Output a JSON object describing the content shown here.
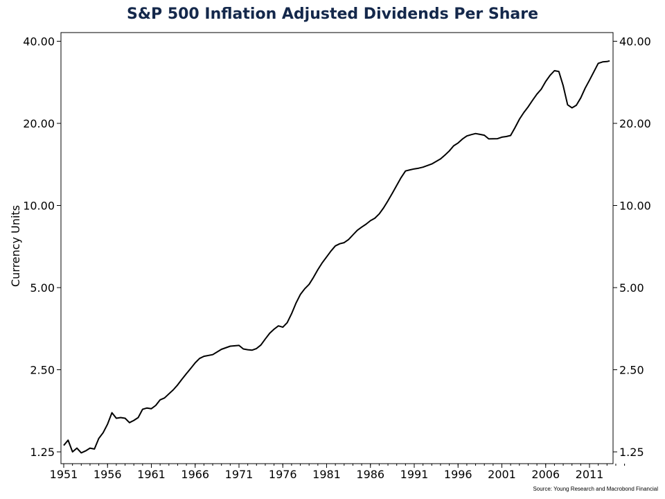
{
  "chart_data": {
    "type": "line",
    "title": "S&P 500 Inflation Adjusted Dividends Per Share",
    "ylabel": "Currency Units",
    "xlabel": "",
    "y_scale": "log",
    "ylim": [
      1.25,
      43
    ],
    "xlim": [
      1951,
      2016
    ],
    "x_ticks": [
      "1951",
      "1956",
      "1961",
      "1966",
      "1971",
      "1976",
      "1981",
      "1986",
      "1991",
      "1996",
      "2001",
      "2006",
      "2011"
    ],
    "y_ticks": [
      "1.25",
      "2.50",
      "5.00",
      "10.00",
      "20.00",
      "40.00"
    ],
    "grid": false,
    "legend": "none",
    "line_color": "#000000",
    "source": "Source: Young Research and Macrobond Financial",
    "series": [
      {
        "x": [
          1951.0,
          1951.5,
          1952.0,
          1952.5,
          1953.0,
          1953.5,
          1954.0,
          1954.5,
          1955.0,
          1955.5,
          1956.0,
          1956.5,
          1957.0,
          1957.5,
          1958.0,
          1958.5,
          1959.0,
          1959.5,
          1960.0,
          1960.5,
          1961.0,
          1961.5,
          1962.0,
          1962.5,
          1963.0,
          1963.5,
          1964.0,
          1964.5,
          1965.0,
          1965.5,
          1966.0,
          1966.5,
          1967.0,
          1968.0,
          1969.0,
          1970.0,
          1971.0,
          1971.5,
          1972.0,
          1972.5,
          1973.0,
          1973.5,
          1974.0,
          1974.5,
          1975.0,
          1975.5,
          1976.0,
          1976.5,
          1977.0,
          1977.5,
          1978.0,
          1978.5,
          1979.0,
          1979.5,
          1980.0,
          1980.5,
          1981.0,
          1981.5,
          1982.0,
          1982.5,
          1983.0,
          1983.5,
          1984.0,
          1984.5,
          1985.0,
          1985.5,
          1986.0,
          1986.5,
          1987.0,
          1987.5,
          1988.0,
          1988.5,
          1989.0,
          1989.5,
          1990.0,
          1990.5,
          1991.0,
          1991.5,
          1992.0,
          1993.0,
          1994.0,
          1994.5,
          1995.0,
          1995.5,
          1996.0,
          1996.5,
          1997.0,
          1997.5,
          1998.0,
          1998.5,
          1999.0,
          1999.5,
          2000.0,
          2000.5,
          2001.0,
          2001.5,
          2002.0,
          2002.5,
          2003.0,
          2003.5,
          2004.0,
          2004.5,
          2005.0,
          2005.5,
          2006.0,
          2006.5,
          2007.0,
          2007.5,
          2008.0,
          2008.5,
          2009.0,
          2009.5,
          2010.0,
          2010.5,
          2011.0,
          2011.5,
          2012.0,
          2012.5,
          2013.0,
          2013.3
        ],
        "y": [
          1.32,
          1.38,
          1.25,
          1.29,
          1.24,
          1.26,
          1.29,
          1.28,
          1.4,
          1.47,
          1.58,
          1.74,
          1.66,
          1.67,
          1.66,
          1.6,
          1.63,
          1.67,
          1.79,
          1.81,
          1.8,
          1.85,
          1.94,
          1.97,
          2.04,
          2.11,
          2.2,
          2.31,
          2.42,
          2.53,
          2.65,
          2.75,
          2.8,
          2.84,
          2.97,
          3.05,
          3.07,
          2.98,
          2.96,
          2.95,
          2.99,
          3.08,
          3.24,
          3.4,
          3.52,
          3.62,
          3.58,
          3.72,
          4.01,
          4.38,
          4.72,
          4.95,
          5.14,
          5.45,
          5.82,
          6.17,
          6.48,
          6.81,
          7.11,
          7.24,
          7.31,
          7.5,
          7.8,
          8.11,
          8.33,
          8.54,
          8.8,
          8.98,
          9.31,
          9.8,
          10.4,
          11.1,
          11.85,
          12.65,
          13.38,
          13.51,
          13.62,
          13.7,
          13.82,
          14.2,
          14.82,
          15.3,
          15.85,
          16.55,
          16.95,
          17.52,
          17.98,
          18.18,
          18.35,
          18.22,
          18.1,
          17.54,
          17.55,
          17.57,
          17.8,
          17.9,
          18.05,
          19.3,
          20.7,
          21.9,
          23.0,
          24.3,
          25.6,
          26.7,
          28.5,
          30.0,
          31.2,
          31.0,
          27.5,
          23.4,
          22.8,
          23.3,
          24.8,
          26.9,
          28.8,
          30.9,
          33.2,
          33.6,
          33.7,
          33.9
        ]
      }
    ]
  }
}
